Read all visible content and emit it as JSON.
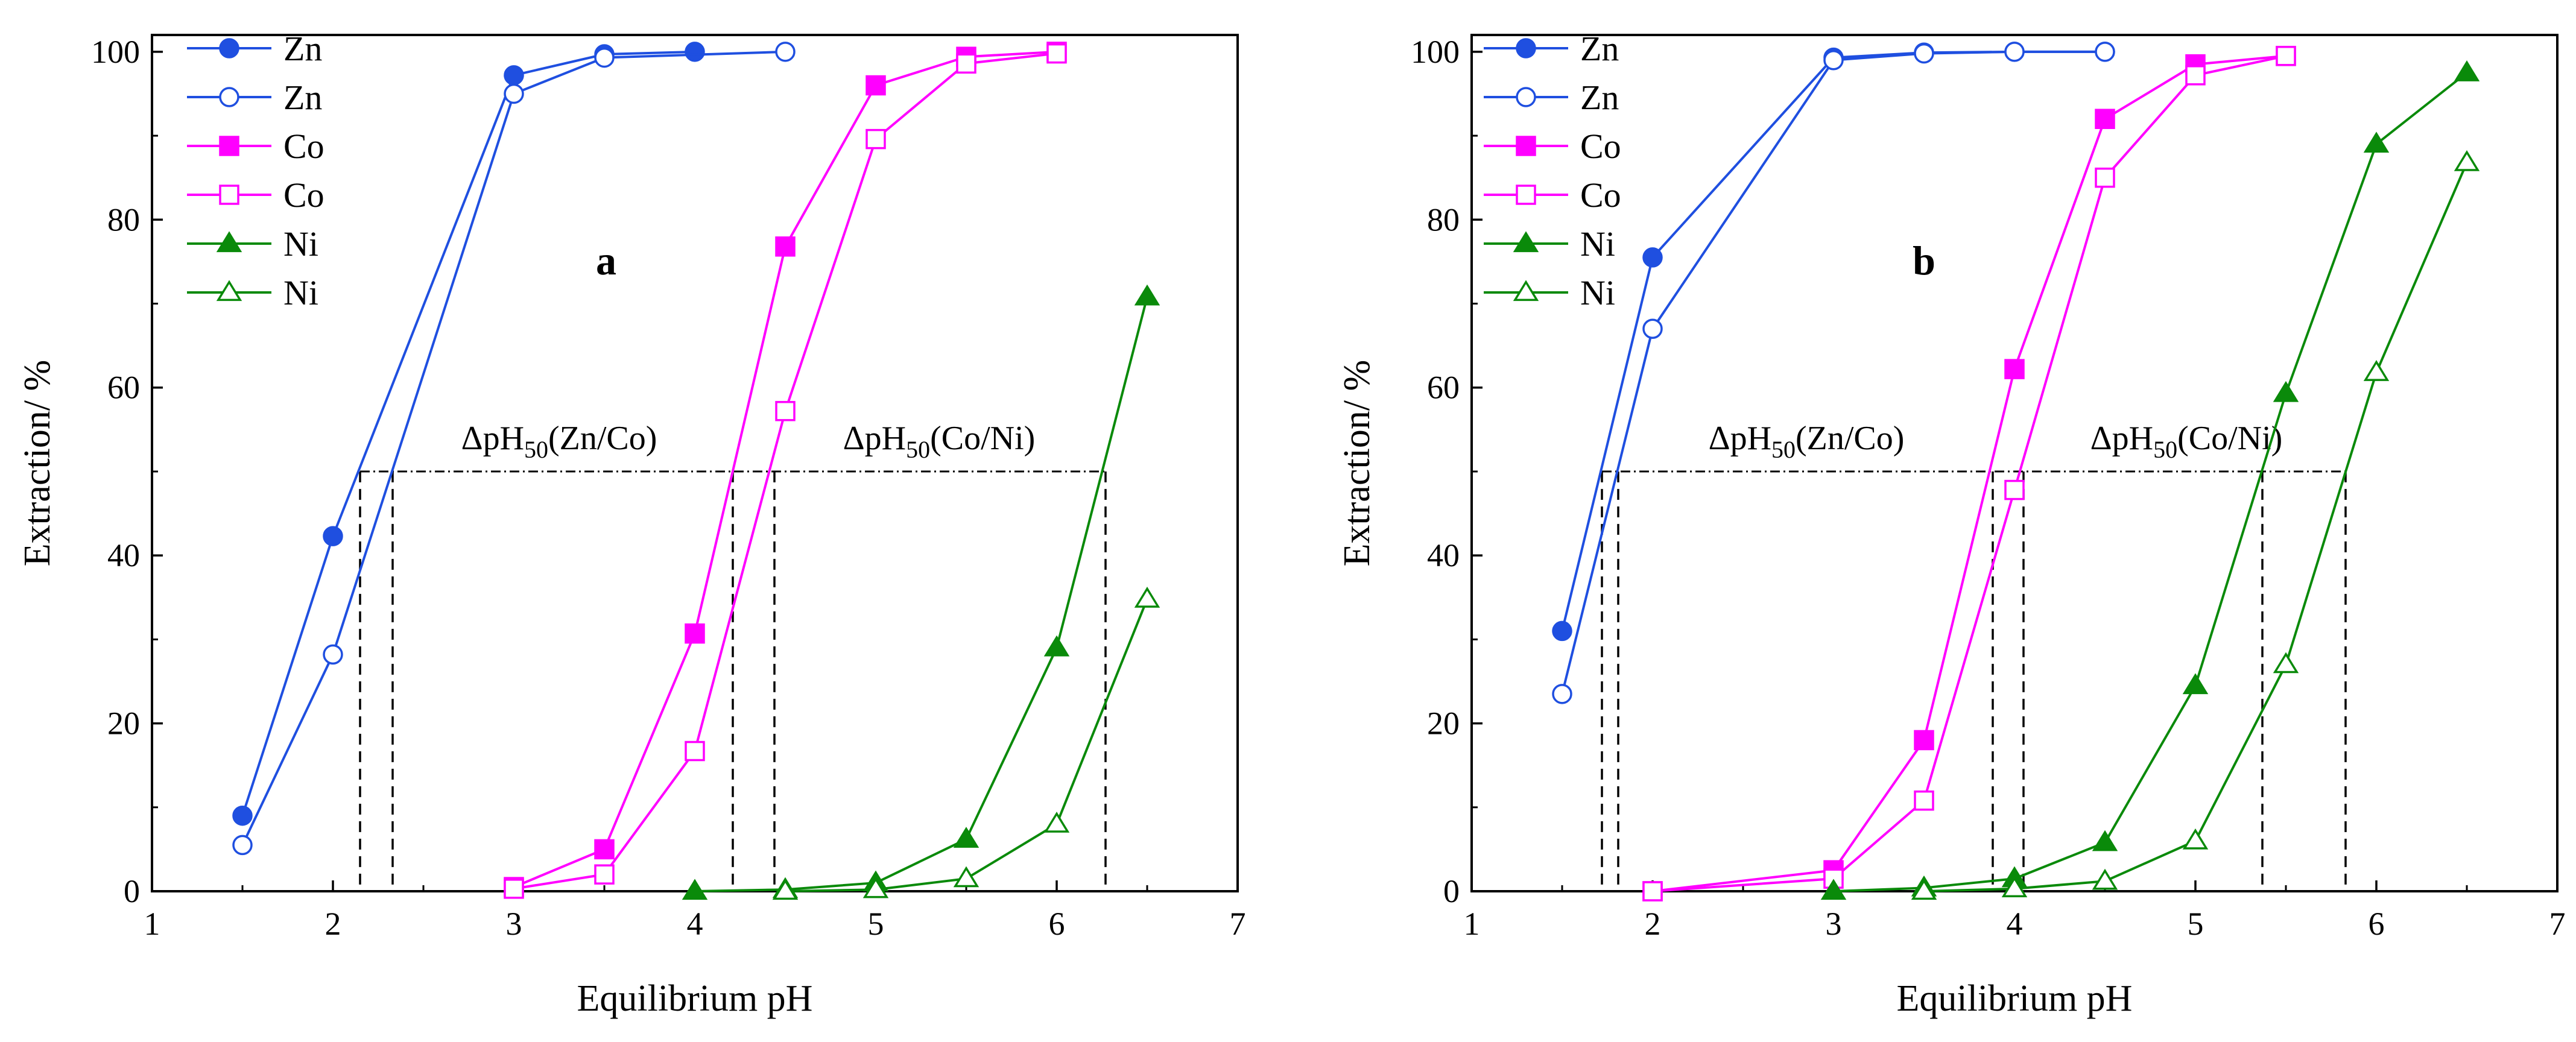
{
  "chart_data": [
    {
      "type": "line",
      "panel_label": "a",
      "xlabel": "Equilibrium pH",
      "ylabel": "Extraction/ %",
      "xlim": [
        1,
        7
      ],
      "ylim": [
        0,
        102
      ],
      "xticks": [
        1,
        2,
        3,
        4,
        5,
        6,
        7
      ],
      "yticks": [
        0,
        20,
        40,
        60,
        80,
        100
      ],
      "legend_position": "top-left",
      "series": [
        {
          "name": "Zn",
          "color": "#1f4fe0",
          "marker": "circle",
          "filled": true,
          "x": [
            1.5,
            2.0,
            3.0,
            3.5,
            4.0
          ],
          "y": [
            9,
            42.3,
            97.2,
            99.7,
            100
          ]
        },
        {
          "name": "Zn",
          "color": "#1f4fe0",
          "marker": "circle",
          "filled": false,
          "x": [
            1.5,
            2.0,
            3.0,
            3.5,
            4.5
          ],
          "y": [
            5.5,
            28.2,
            95,
            99.3,
            100
          ]
        },
        {
          "name": "Co",
          "color": "#ff00ff",
          "marker": "square",
          "filled": true,
          "x": [
            3.0,
            3.5,
            4.0,
            4.5,
            5.0,
            5.5,
            6.0
          ],
          "y": [
            0.5,
            5,
            30.7,
            76.8,
            96,
            99.4,
            100
          ]
        },
        {
          "name": "Co",
          "color": "#ff00ff",
          "marker": "square",
          "filled": false,
          "x": [
            3.0,
            3.5,
            4.0,
            4.5,
            5.0,
            5.5,
            6.0
          ],
          "y": [
            0.3,
            2,
            16.7,
            57.2,
            89.6,
            98.6,
            99.8
          ]
        },
        {
          "name": "Ni",
          "color": "#0a8a0a",
          "marker": "triangle",
          "filled": true,
          "x": [
            4.0,
            4.5,
            5.0,
            5.5,
            6.0,
            6.5
          ],
          "y": [
            0,
            0.2,
            1,
            6.2,
            29,
            70.8
          ]
        },
        {
          "name": "Ni",
          "color": "#0a8a0a",
          "marker": "triangle",
          "filled": false,
          "x": [
            4.5,
            5.0,
            5.5,
            6.0,
            6.5
          ],
          "y": [
            0,
            0.2,
            1.5,
            8,
            34.8
          ]
        }
      ],
      "reference_line": {
        "y": 50,
        "x_from": 2.15,
        "x_to": 6.27
      },
      "drop_lines": [
        2.15,
        2.33,
        4.21,
        4.44,
        6.27
      ],
      "annotations": [
        {
          "base": "ΔpH",
          "sub": "50",
          "tail": "(Zn/Co)",
          "x": 3.25,
          "y": 51.5
        },
        {
          "base": "ΔpH",
          "sub": "50",
          "tail": "(Co/Ni)",
          "x": 5.35,
          "y": 51.5
        }
      ]
    },
    {
      "type": "line",
      "panel_label": "b",
      "xlabel": "Equilibrium pH",
      "ylabel": "Extraction/ %",
      "xlim": [
        1,
        7
      ],
      "ylim": [
        0,
        102
      ],
      "xticks": [
        1,
        2,
        3,
        4,
        5,
        6,
        7
      ],
      "yticks": [
        0,
        20,
        40,
        60,
        80,
        100
      ],
      "legend_position": "top-left",
      "series": [
        {
          "name": "Zn",
          "color": "#1f4fe0",
          "marker": "circle",
          "filled": true,
          "x": [
            1.5,
            2.0,
            3.0,
            3.5,
            4.0,
            4.5
          ],
          "y": [
            31,
            75.5,
            99.3,
            99.9,
            100,
            100
          ]
        },
        {
          "name": "Zn",
          "color": "#1f4fe0",
          "marker": "circle",
          "filled": false,
          "x": [
            1.5,
            2.0,
            3.0,
            3.5,
            4.0,
            4.5
          ],
          "y": [
            23.5,
            67,
            99,
            99.8,
            100,
            100
          ]
        },
        {
          "name": "Co",
          "color": "#ff00ff",
          "marker": "square",
          "filled": true,
          "x": [
            2.0,
            3.0,
            3.5,
            4.0,
            4.5,
            5.0,
            5.5
          ],
          "y": [
            0,
            2.5,
            18,
            62.2,
            92,
            98.5,
            99.5
          ]
        },
        {
          "name": "Co",
          "color": "#ff00ff",
          "marker": "square",
          "filled": false,
          "x": [
            2.0,
            3.0,
            3.5,
            4.0,
            4.5,
            5.0,
            5.5
          ],
          "y": [
            0,
            1.5,
            10.8,
            47.8,
            85,
            97.2,
            99.5
          ]
        },
        {
          "name": "Ni",
          "color": "#0a8a0a",
          "marker": "triangle",
          "filled": true,
          "x": [
            3.0,
            3.5,
            4.0,
            4.5,
            5.0,
            5.5,
            6.0,
            6.5
          ],
          "y": [
            0,
            0.4,
            1.5,
            5.8,
            24.5,
            59.3,
            89,
            97.5
          ]
        },
        {
          "name": "Ni",
          "color": "#0a8a0a",
          "marker": "triangle",
          "filled": false,
          "x": [
            3.5,
            4.0,
            4.5,
            5.0,
            5.5,
            6.0,
            6.5
          ],
          "y": [
            0,
            0.3,
            1.2,
            6,
            27,
            61.8,
            86.8
          ]
        }
      ],
      "reference_line": {
        "y": 50,
        "x_from": 1.72,
        "x_to": 5.83
      },
      "drop_lines": [
        1.72,
        1.81,
        3.88,
        4.05,
        5.37,
        5.83
      ],
      "annotations": [
        {
          "base": "ΔpH",
          "sub": "50",
          "tail": "(Zn/Co)",
          "x": 2.85,
          "y": 51.5
        },
        {
          "base": "ΔpH",
          "sub": "50",
          "tail": "(Co/Ni)",
          "x": 4.95,
          "y": 51.5
        }
      ]
    }
  ]
}
